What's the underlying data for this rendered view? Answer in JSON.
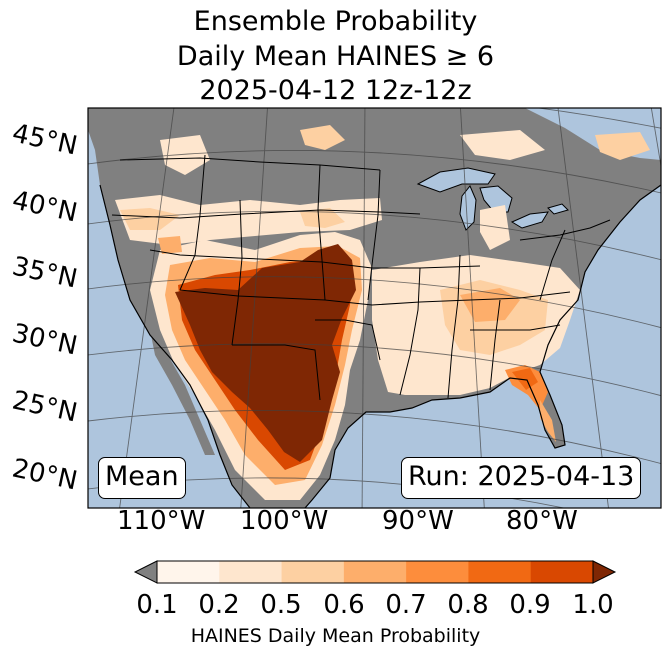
{
  "title": {
    "line1": "Ensemble Probability",
    "line2": "Daily Mean HAINES ≥ 6",
    "line3": "2025-04-12 12z-12z"
  },
  "map": {
    "lat_labels": [
      "45°N",
      "40°N",
      "35°N",
      "30°N",
      "25°N",
      "20°N"
    ],
    "lon_labels": [
      "110°W",
      "100°W",
      "90°W",
      "80°W"
    ],
    "mean_label": "Mean",
    "run_label": "Run: 2025-04-13",
    "colors": {
      "ocean": "#aec5dd",
      "land_no_data": "#808080",
      "lakes": "#aec5dd"
    }
  },
  "colorbar": {
    "ticks": [
      "0.1",
      "0.2",
      "0.5",
      "0.6",
      "0.7",
      "0.8",
      "0.9",
      "1.0"
    ],
    "label": "HAINES Daily Mean Probability",
    "under_color": "#808080",
    "over_color": "#7f2704",
    "colors": [
      "#fff5eb",
      "#fee6ce",
      "#fdd0a2",
      "#fdae6b",
      "#fd8d3c",
      "#f16913",
      "#d94801"
    ]
  }
}
